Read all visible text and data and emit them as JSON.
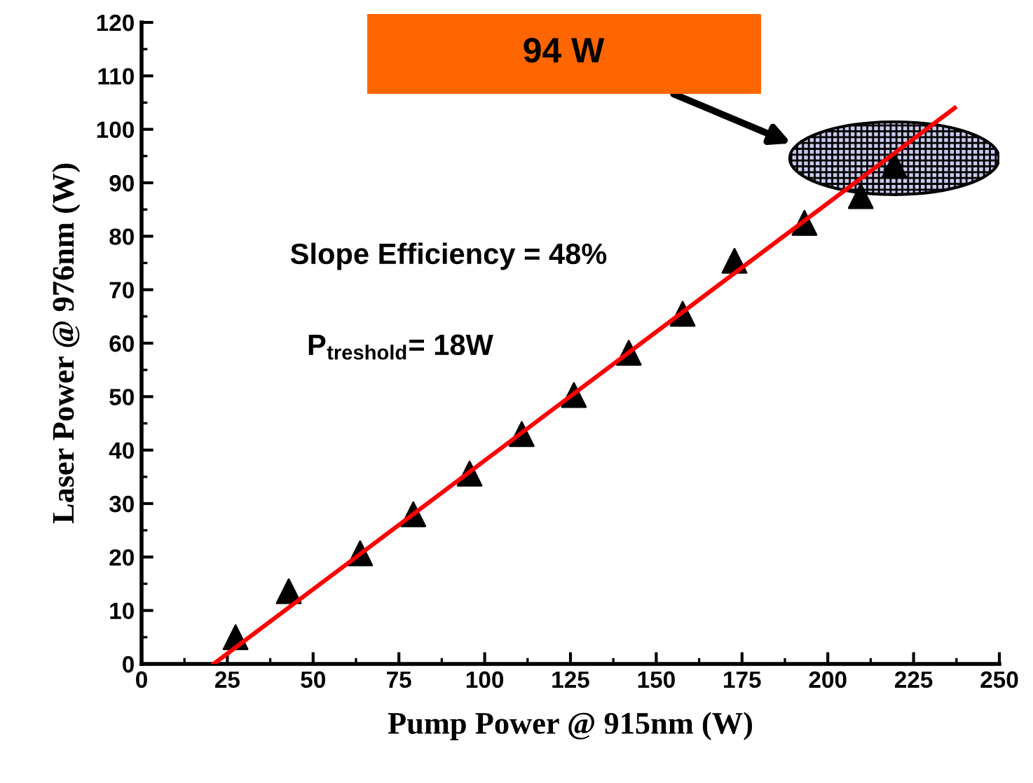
{
  "chart_data": {
    "type": "scatter",
    "xlabel": "Pump Power @ 915nm (W)",
    "ylabel": "Laser Power @ 976nm (W)",
    "series": [
      {
        "color": "#000000",
        "marker": "triangle",
        "x": [
          27.4,
          42.9,
          63.7,
          79.2,
          95.6,
          110.8,
          126,
          142,
          157.7,
          172.8,
          193.2,
          209.6,
          219.4
        ],
        "values": [
          5,
          13.6,
          20.7,
          28,
          35.6,
          43,
          50.3,
          58.2,
          65.5,
          75.4,
          82.5,
          87.5,
          93.3
        ]
      },
      {
        "type": "line",
        "color": "#ff0000",
        "marker": "none",
        "x": [
          21,
          237
        ],
        "values": [
          0,
          104
        ]
      }
    ],
    "xlim": [
      0,
      250
    ],
    "xticks": [
      0,
      25,
      50,
      75,
      100,
      125,
      150,
      175,
      200,
      225,
      250
    ],
    "ylim": [
      0,
      120
    ],
    "yticks": [
      0,
      10,
      20,
      30,
      40,
      50,
      60,
      70,
      80,
      90,
      100,
      110,
      120
    ],
    "grid": false,
    "legend": false,
    "annotations": [
      "94 W",
      "Slope Efficiency = 48%",
      "P$_{treshold}$= 18W"
    ]
  }
}
